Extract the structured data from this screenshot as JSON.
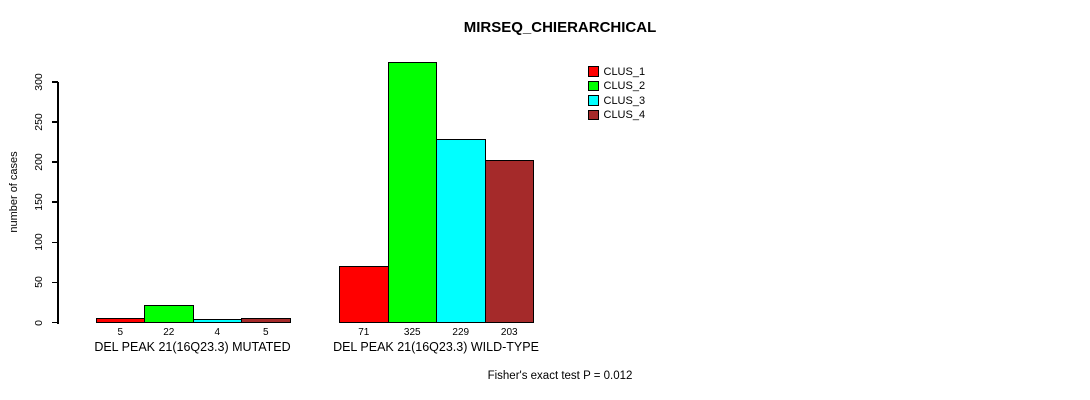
{
  "title": "MIRSEQ_CHIERARCHICAL",
  "footnote": "Fisher's exact test P = 0.012",
  "colors": {
    "clus_1": "#FF0000",
    "clus_2": "#00FF00",
    "clus_3": "#00FFFF",
    "clus_4": "#A52A2A",
    "axis": "#000000",
    "background": "#FFFFFF"
  },
  "legend": {
    "position": "top-right",
    "entries": [
      {
        "label": "CLUS_1",
        "color": "#FF0000"
      },
      {
        "label": "CLUS_2",
        "color": "#00FF00"
      },
      {
        "label": "CLUS_3",
        "color": "#00FFFF"
      },
      {
        "label": "CLUS_4",
        "color": "#A52A2A"
      }
    ]
  },
  "chart_data": {
    "type": "bar",
    "title": "MIRSEQ_CHIERARCHICAL",
    "xlabel": "",
    "ylabel": "number of cases",
    "categories": [
      "DEL PEAK 21(16Q23.3) MUTATED",
      "DEL PEAK 21(16Q23.3) WILD-TYPE"
    ],
    "series": [
      {
        "name": "CLUS_1",
        "color": "#FF0000",
        "values": [
          5,
          71
        ]
      },
      {
        "name": "CLUS_2",
        "color": "#00FF00",
        "values": [
          22,
          325
        ]
      },
      {
        "name": "CLUS_3",
        "color": "#00FFFF",
        "values": [
          4,
          229
        ]
      },
      {
        "name": "CLUS_4",
        "color": "#A52A2A",
        "values": [
          5,
          203
        ]
      }
    ],
    "bar_value_labels": [
      [
        5,
        22,
        4,
        5
      ],
      [
        71,
        325,
        229,
        203
      ]
    ],
    "yticks": [
      0,
      50,
      100,
      150,
      200,
      250,
      300
    ],
    "ylim": [
      0,
      300
    ],
    "grid": false,
    "legend_position": "top-right",
    "annotation": "Fisher's exact test P = 0.012"
  }
}
